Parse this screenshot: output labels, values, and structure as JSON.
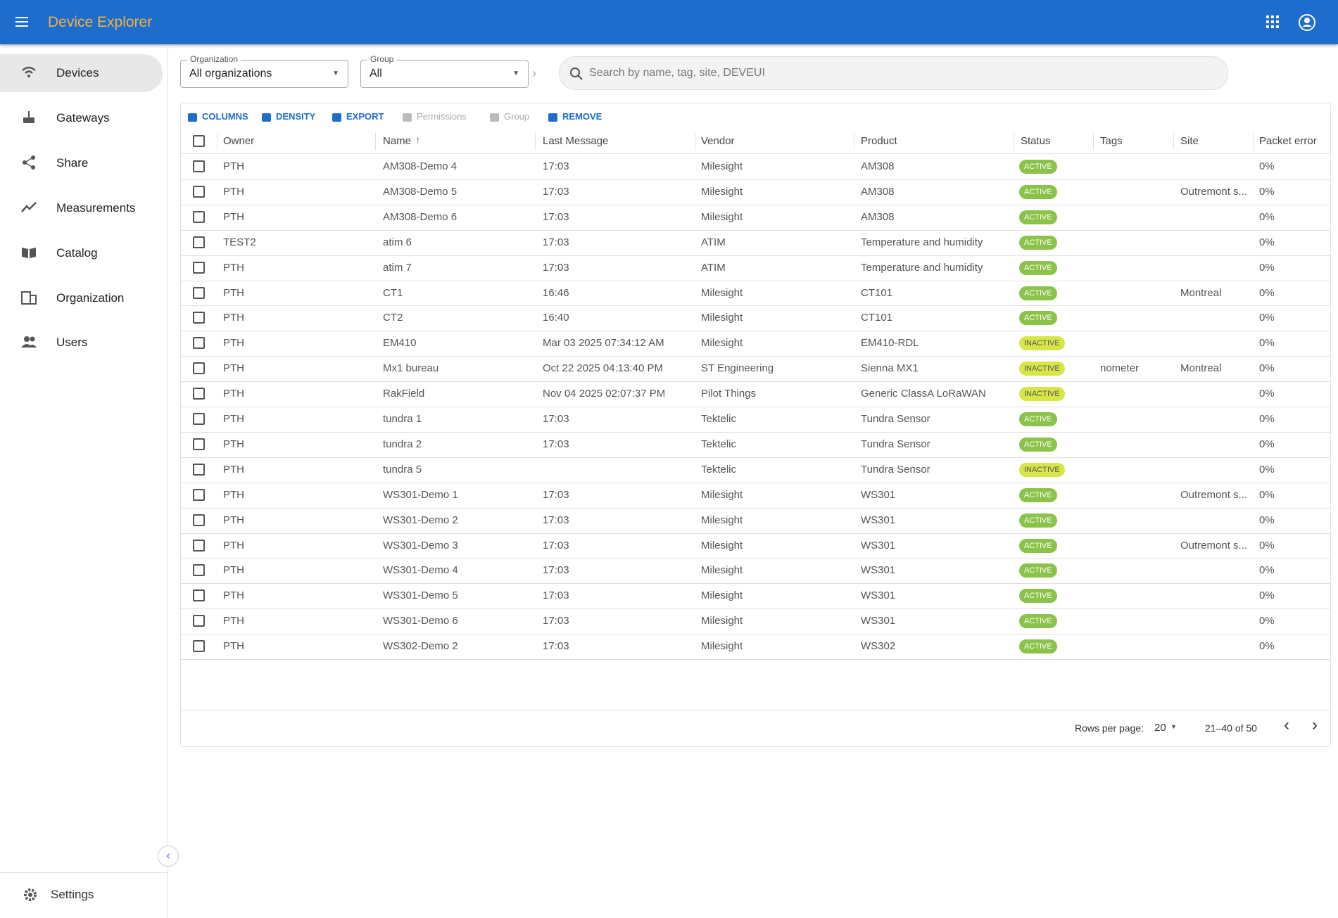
{
  "header": {
    "title": "Device Explorer"
  },
  "nav": {
    "items": [
      "Devices",
      "Gateways",
      "Share",
      "Measurements",
      "Catalog",
      "Organization",
      "Users"
    ],
    "settings": "Settings"
  },
  "filters": {
    "organization": {
      "label": "Organization",
      "value": "All organizations"
    },
    "group": {
      "label": "Group",
      "value": "All"
    },
    "search": {
      "placeholder": "Search by name, tag, site, DEVEUI"
    }
  },
  "toolbar": {
    "buttons": [
      "COLUMNS",
      "DENSITY",
      "EXPORT",
      "Permissions",
      "Group",
      "REMOVE"
    ]
  },
  "table": {
    "columns": [
      "Owner",
      "Name",
      "Last Message",
      "Vendor",
      "Product",
      "Status",
      "Tags",
      "Site",
      "Packet error"
    ],
    "rows": [
      [
        "PTH",
        "AM308-Demo 4",
        "17:03",
        "Milesight",
        "AM308",
        "ACTIVE",
        null,
        null,
        "0%"
      ],
      [
        "PTH",
        "AM308-Demo 5",
        "17:03",
        "Milesight",
        "AM308",
        "ACTIVE",
        null,
        "Outremont s...",
        "0%"
      ],
      [
        "PTH",
        "AM308-Demo 6",
        "17:03",
        "Milesight",
        "AM308",
        "ACTIVE",
        null,
        null,
        "0%"
      ],
      [
        "TEST2",
        "atim 6",
        "17:03",
        "ATIM",
        "Temperature and humidity",
        "ACTIVE",
        null,
        null,
        "0%"
      ],
      [
        "PTH",
        "atim 7",
        "17:03",
        "ATIM",
        "Temperature and humidity",
        "ACTIVE",
        null,
        null,
        "0%"
      ],
      [
        "PTH",
        "CT1",
        "16:46",
        "Milesight",
        "CT101",
        "ACTIVE",
        null,
        "Montreal",
        "0%"
      ],
      [
        "PTH",
        "CT2",
        "16:40",
        "Milesight",
        "CT101",
        "ACTIVE",
        null,
        null,
        "0%"
      ],
      [
        "PTH",
        "EM410",
        "Mar 03 2025 07:34:12 AM",
        "Milesight",
        "EM410-RDL",
        "INACTIVE",
        null,
        null,
        "0%"
      ],
      [
        "PTH",
        "Mx1 bureau",
        "Oct 22 2025 04:13:40 PM",
        "ST Engineering",
        "Sienna MX1",
        "INACTIVE",
        "nometer",
        "Montreal",
        "0%"
      ],
      [
        "PTH",
        "RakField",
        "Nov 04 2025 02:07:37 PM",
        "Pilot Things",
        "Generic ClassA LoRaWAN",
        "INACTIVE",
        null,
        null,
        "0%"
      ],
      [
        "PTH",
        "tundra 1",
        "17:03",
        "Tektelic",
        "Tundra Sensor",
        "ACTIVE",
        null,
        null,
        "0%"
      ],
      [
        "PTH",
        "tundra 2",
        "17:03",
        "Tektelic",
        "Tundra Sensor",
        "ACTIVE",
        null,
        null,
        "0%"
      ],
      [
        "PTH",
        "tundra 5",
        null,
        "Tektelic",
        "Tundra Sensor",
        "INACTIVE",
        null,
        null,
        "0%"
      ],
      [
        "PTH",
        "WS301-Demo 1",
        "17:03",
        "Milesight",
        "WS301",
        "ACTIVE",
        null,
        "Outremont s...",
        "0%"
      ],
      [
        "PTH",
        "WS301-Demo 2",
        "17:03",
        "Milesight",
        "WS301",
        "ACTIVE",
        null,
        null,
        "0%"
      ],
      [
        "PTH",
        "WS301-Demo 3",
        "17:03",
        "Milesight",
        "WS301",
        "ACTIVE",
        null,
        "Outremont s...",
        "0%"
      ],
      [
        "PTH",
        "WS301-Demo 4",
        "17:03",
        "Milesight",
        "WS301",
        "ACTIVE",
        null,
        null,
        "0%"
      ],
      [
        "PTH",
        "WS301-Demo 5",
        "17:03",
        "Milesight",
        "WS301",
        "ACTIVE",
        null,
        null,
        "0%"
      ],
      [
        "PTH",
        "WS301-Demo 6",
        "17:03",
        "Milesight",
        "WS301",
        "ACTIVE",
        null,
        null,
        "0%"
      ],
      [
        "PTH",
        "WS302-Demo 2",
        "17:03",
        "Milesight",
        "WS302",
        "ACTIVE",
        null,
        null,
        "0%"
      ]
    ]
  },
  "footer": {
    "rows_per_page_label": "Rows per page:",
    "rows_per_page": "20",
    "range": "21–40 of 50"
  }
}
